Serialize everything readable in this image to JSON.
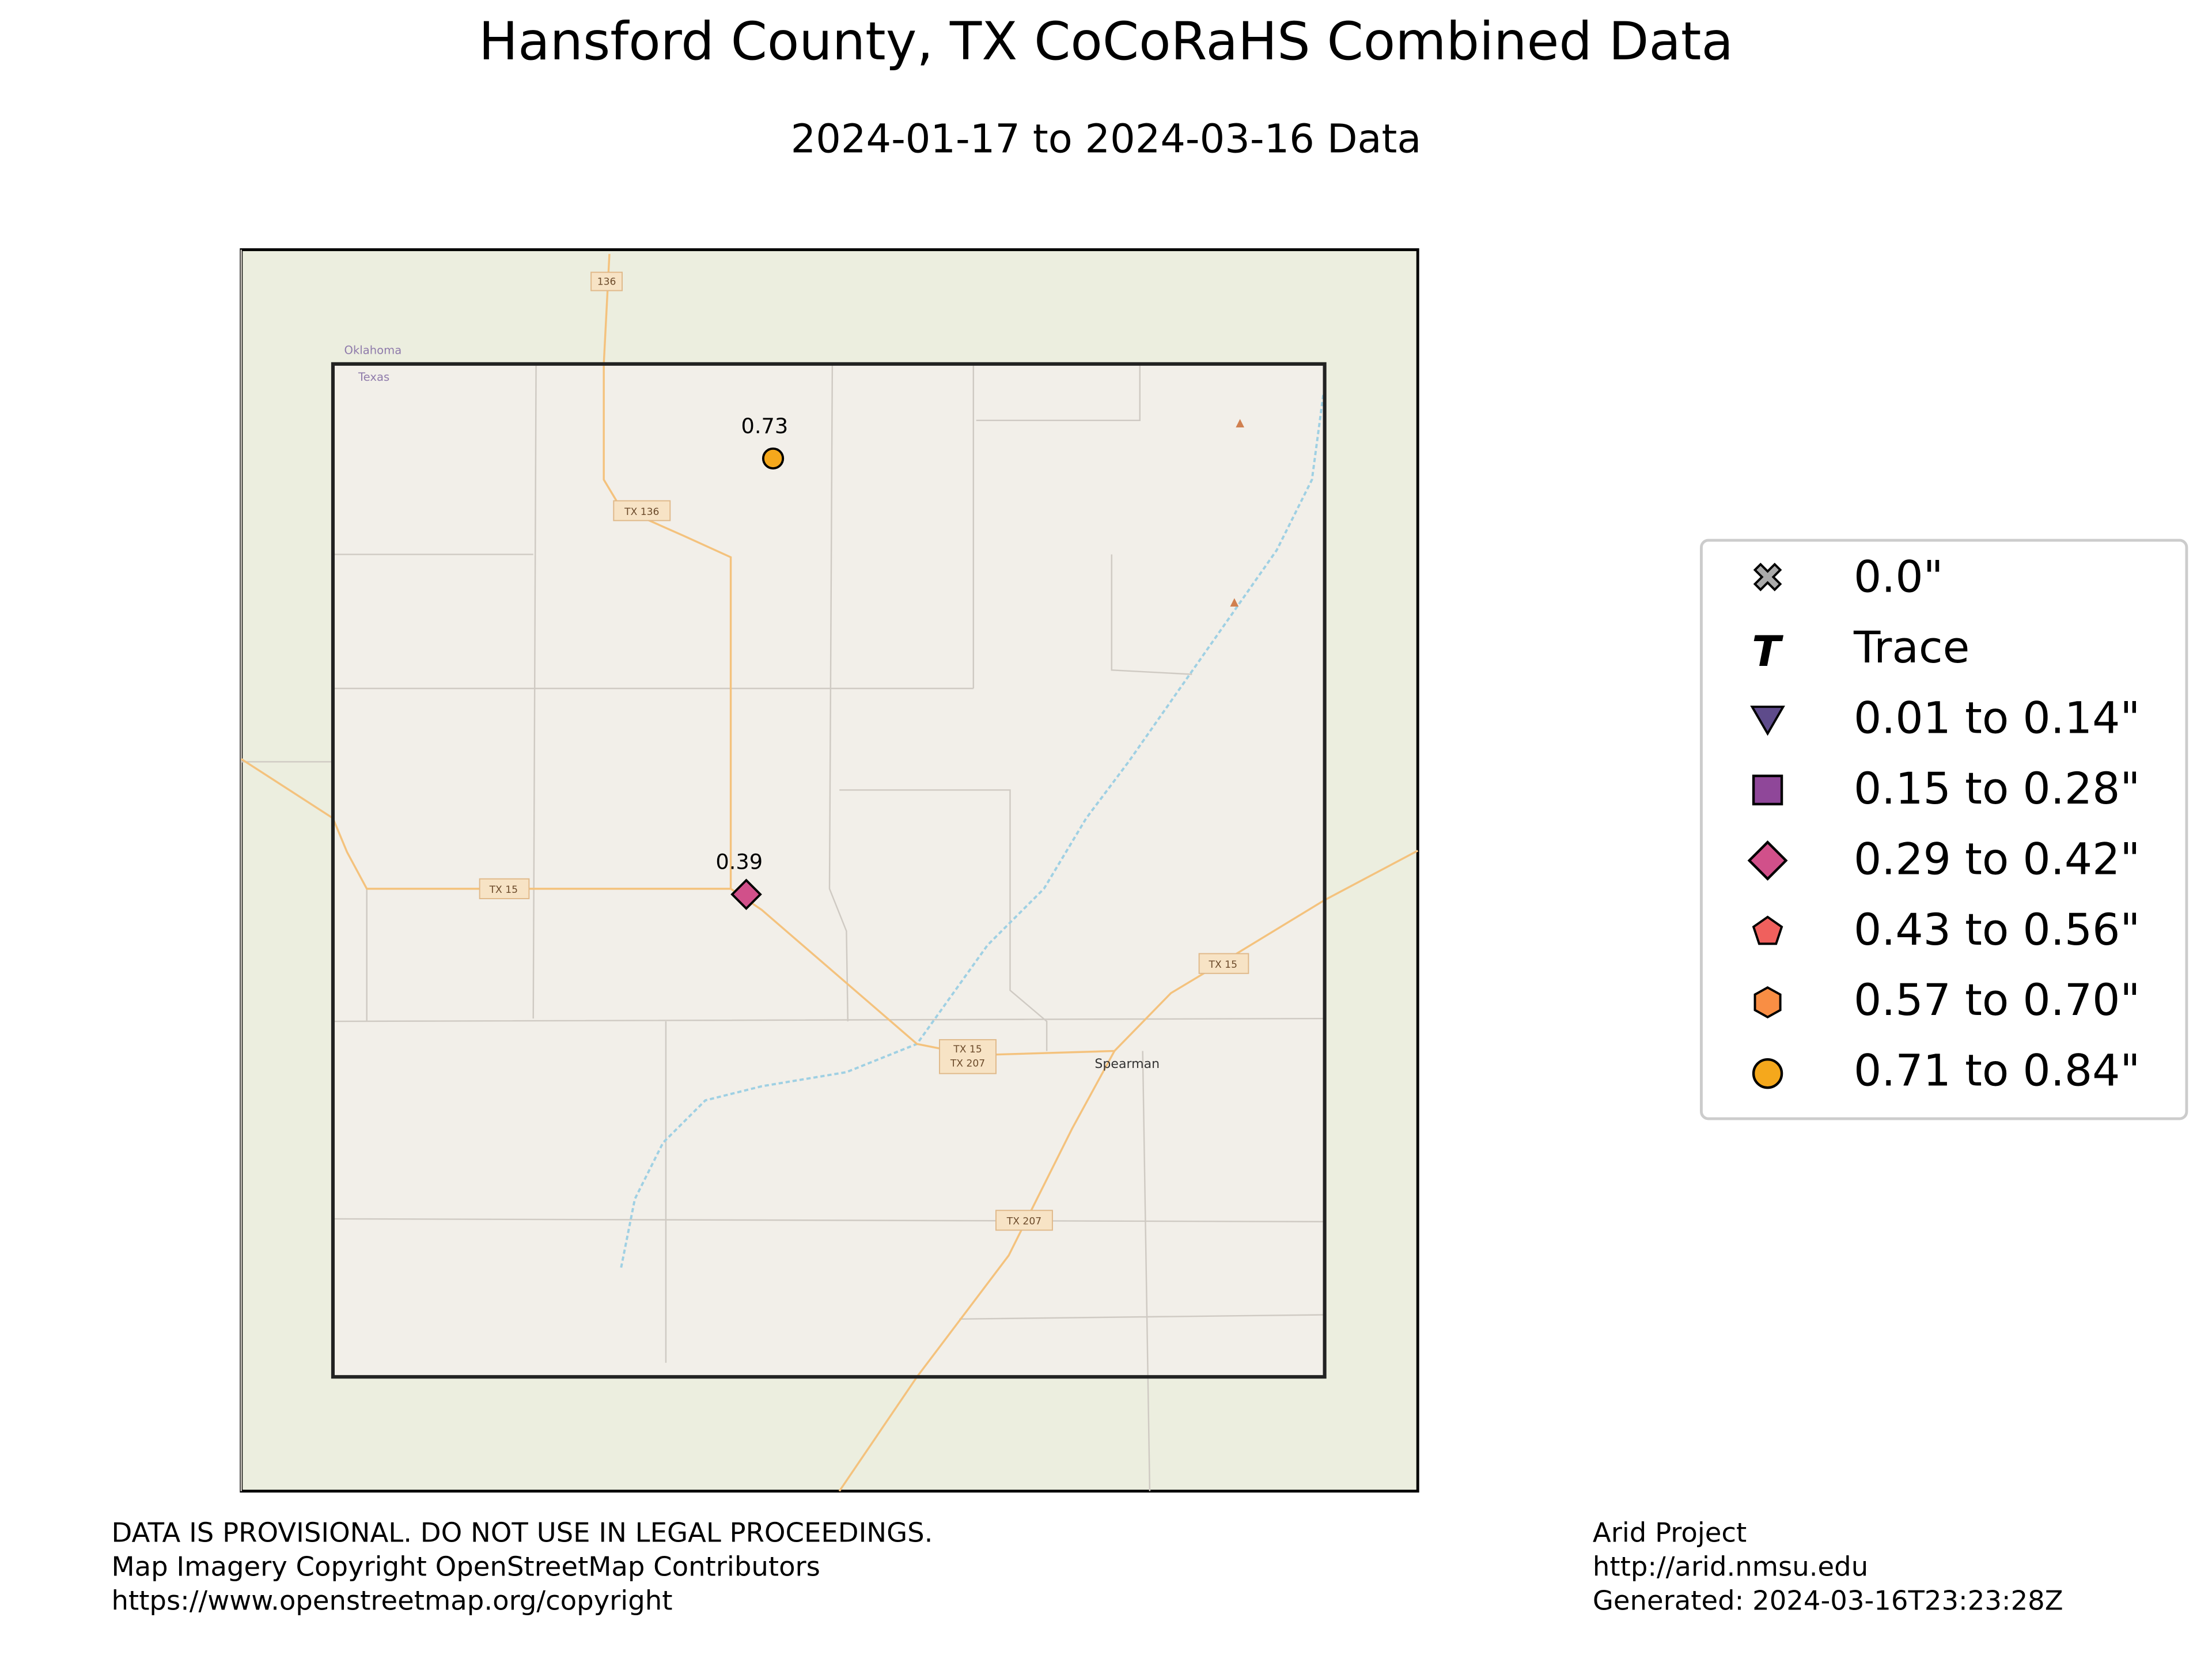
{
  "title": "Hansford County, TX CoCoRaHS Combined Data",
  "subtitle": "2024-01-17 to 2024-03-16 Data",
  "map_labels": [
    "136",
    "Oklahoma",
    "Texas",
    "TX 136",
    "TX 15",
    "TX 15",
    "TX 207",
    "TX 15",
    "TX 207",
    "Spearman"
  ],
  "stations": [
    {
      "value": 0.73
    },
    {
      "value": 0.39
    }
  ],
  "legend": [
    "0.0\"",
    "Trace",
    "0.01 to 0.14\"",
    "0.15 to 0.28\"",
    "0.29 to 0.42\"",
    "0.43 to 0.56\"",
    "0.57 to 0.70\"",
    "0.71 to 0.84\""
  ],
  "footer_left": [
    "DATA IS PROVISIONAL. DO NOT USE IN LEGAL PROCEEDINGS.",
    "Map Imagery Copyright OpenStreetMap Contributors",
    "https://www.openstreetmap.org/copyright"
  ],
  "footer_right": [
    "Arid Project",
    "http://arid.nmsu.edu",
    "Generated: 2024-03-16T23:23:28Z"
  ]
}
